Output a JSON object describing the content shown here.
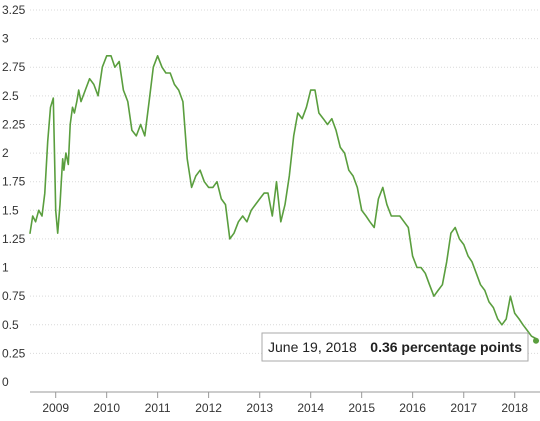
{
  "chart_data": {
    "type": "line",
    "title": "",
    "xlabel": "",
    "ylabel": "",
    "ylim": [
      0,
      3.25
    ],
    "xlim": [
      "2008-07-01",
      "2018-07-01"
    ],
    "yticks": [
      "3.25",
      "3",
      "2.75",
      "2.5",
      "2.25",
      "2",
      "1.75",
      "1.5",
      "1.25",
      "1",
      "0.75",
      "0.5",
      "0.25",
      "0"
    ],
    "xticks": [
      "2009",
      "2010",
      "2011",
      "2012",
      "2013",
      "2014",
      "2015",
      "2016",
      "2017",
      "2018"
    ],
    "grid": true,
    "line_color": "#5a9e3e",
    "series": [
      {
        "x": [
          "2008-07-01",
          "2008-07-20",
          "2008-08-10",
          "2008-09-01",
          "2008-09-25",
          "2008-10-15",
          "2008-11-05",
          "2008-11-25",
          "2008-12-15",
          "2009-01-01",
          "2009-01-15",
          "2009-02-01",
          "2009-02-10",
          "2009-02-20",
          "2009-03-01",
          "2009-03-15",
          "2009-04-01",
          "2009-04-15",
          "2009-05-01",
          "2009-05-15",
          "2009-06-01",
          "2009-06-15",
          "2009-07-01",
          "2009-08-01",
          "2009-09-01",
          "2009-10-01",
          "2009-11-01",
          "2009-12-01",
          "2010-01-01",
          "2010-02-01",
          "2010-03-01",
          "2010-04-01",
          "2010-05-01",
          "2010-06-01",
          "2010-07-01",
          "2010-08-01",
          "2010-09-01",
          "2010-10-01",
          "2010-11-01",
          "2010-12-01",
          "2011-01-01",
          "2011-02-01",
          "2011-03-01",
          "2011-04-01",
          "2011-05-01",
          "2011-06-01",
          "2011-07-01",
          "2011-08-01",
          "2011-09-01",
          "2011-10-01",
          "2011-11-01",
          "2011-12-01",
          "2012-01-01",
          "2012-02-01",
          "2012-03-01",
          "2012-04-01",
          "2012-05-01",
          "2012-06-01",
          "2012-07-01",
          "2012-08-01",
          "2012-09-01",
          "2012-10-01",
          "2012-11-01",
          "2012-12-01",
          "2013-01-01",
          "2013-02-01",
          "2013-03-01",
          "2013-04-01",
          "2013-05-01",
          "2013-06-01",
          "2013-07-01",
          "2013-08-01",
          "2013-09-01",
          "2013-10-01",
          "2013-11-01",
          "2013-12-01",
          "2014-01-01",
          "2014-02-01",
          "2014-03-01",
          "2014-04-01",
          "2014-05-01",
          "2014-06-01",
          "2014-07-01",
          "2014-08-01",
          "2014-09-01",
          "2014-10-01",
          "2014-11-01",
          "2014-12-01",
          "2015-01-01",
          "2015-02-01",
          "2015-03-01",
          "2015-04-01",
          "2015-05-01",
          "2015-06-01",
          "2015-07-01",
          "2015-08-01",
          "2015-09-01",
          "2015-10-01",
          "2015-11-01",
          "2015-12-01",
          "2016-01-01",
          "2016-02-01",
          "2016-03-01",
          "2016-04-01",
          "2016-05-01",
          "2016-06-01",
          "2016-07-01",
          "2016-08-01",
          "2016-09-01",
          "2016-10-01",
          "2016-11-01",
          "2016-12-01",
          "2017-01-01",
          "2017-02-01",
          "2017-03-01",
          "2017-04-01",
          "2017-05-01",
          "2017-06-01",
          "2017-07-01",
          "2017-08-01",
          "2017-09-01",
          "2017-10-01",
          "2017-11-01",
          "2017-12-01",
          "2018-01-01",
          "2018-02-01",
          "2018-03-01",
          "2018-04-01",
          "2018-05-01",
          "2018-06-01",
          "2018-06-19"
        ],
        "y": [
          1.3,
          1.45,
          1.4,
          1.5,
          1.45,
          1.65,
          2.1,
          2.4,
          2.48,
          1.5,
          1.3,
          1.55,
          1.75,
          1.95,
          1.85,
          2.0,
          1.9,
          2.25,
          2.4,
          2.35,
          2.45,
          2.55,
          2.45,
          2.55,
          2.65,
          2.6,
          2.5,
          2.75,
          2.85,
          2.85,
          2.75,
          2.8,
          2.55,
          2.45,
          2.2,
          2.15,
          2.25,
          2.15,
          2.45,
          2.75,
          2.85,
          2.75,
          2.7,
          2.7,
          2.6,
          2.55,
          2.45,
          1.95,
          1.7,
          1.8,
          1.85,
          1.75,
          1.7,
          1.7,
          1.75,
          1.6,
          1.55,
          1.25,
          1.3,
          1.4,
          1.45,
          1.4,
          1.5,
          1.55,
          1.6,
          1.65,
          1.65,
          1.45,
          1.75,
          1.4,
          1.55,
          1.8,
          2.15,
          2.35,
          2.3,
          2.4,
          2.55,
          2.55,
          2.35,
          2.3,
          2.25,
          2.3,
          2.2,
          2.05,
          2.0,
          1.85,
          1.8,
          1.7,
          1.5,
          1.45,
          1.4,
          1.35,
          1.6,
          1.7,
          1.55,
          1.45,
          1.45,
          1.45,
          1.4,
          1.35,
          1.1,
          1.0,
          1.0,
          0.95,
          0.85,
          0.75,
          0.8,
          0.85,
          1.05,
          1.3,
          1.35,
          1.25,
          1.2,
          1.1,
          1.05,
          0.95,
          0.85,
          0.8,
          0.7,
          0.65,
          0.55,
          0.5,
          0.55,
          0.75,
          0.6,
          0.55,
          0.5,
          0.45,
          0.4,
          0.38,
          0.36
        ]
      }
    ],
    "annotation": {
      "date_text": "June 19, 2018",
      "value_text": "0.36 percentage points"
    }
  }
}
